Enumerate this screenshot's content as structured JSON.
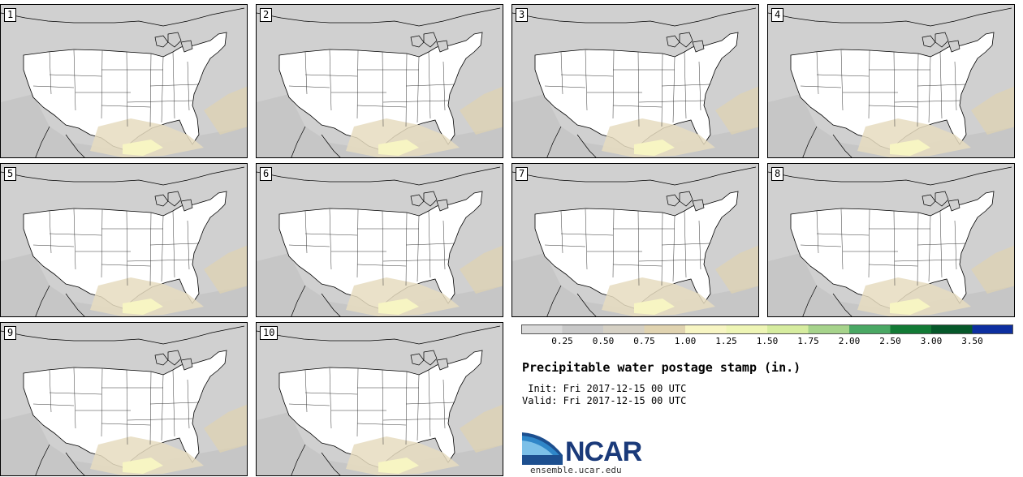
{
  "panels": [
    {
      "label": "1"
    },
    {
      "label": "2"
    },
    {
      "label": "3"
    },
    {
      "label": "4"
    },
    {
      "label": "5"
    },
    {
      "label": "6"
    },
    {
      "label": "7"
    },
    {
      "label": "8"
    },
    {
      "label": "9"
    },
    {
      "label": "10"
    }
  ],
  "colorbar": {
    "levels": [
      "0.25",
      "0.50",
      "0.75",
      "1.00",
      "1.25",
      "1.50",
      "1.75",
      "2.00",
      "2.50",
      "3.00",
      "3.50"
    ],
    "colors": [
      "#d9d9d9",
      "#c8c8c8",
      "#d5d0c4",
      "#e0d3b0",
      "#f7f5c3",
      "#eef5b5",
      "#d6ec9f",
      "#a6d38b",
      "#4aa864",
      "#127a35",
      "#06582a",
      "#0d2fa0"
    ]
  },
  "title": "Precipitable water postage stamp (in.)",
  "init": " Init: Fri 2017-12-15 00 UTC",
  "valid": "Valid: Fri 2017-12-15 00 UTC",
  "logo": {
    "text": "NCAR",
    "site": "ensemble.ucar.edu"
  }
}
